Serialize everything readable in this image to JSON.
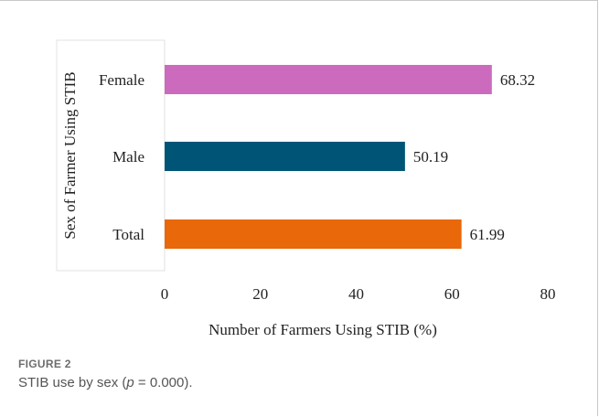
{
  "chart_data": {
    "type": "bar",
    "orientation": "horizontal",
    "categories": [
      "Female",
      "Male",
      "Total"
    ],
    "values": [
      68.32,
      50.19,
      61.99
    ],
    "data_labels": [
      "68.32",
      "50.19",
      "61.99"
    ],
    "colors": [
      "#cc6bbd",
      "#005577",
      "#e8680a"
    ],
    "xlabel": "Number of Farmers Using STIB (%)",
    "ylabel": "Sex of Farmer Using STIB",
    "xlim": [
      0,
      80
    ],
    "xticks": [
      "0",
      "20",
      "40",
      "60",
      "80"
    ],
    "grid": false,
    "legend": "none"
  },
  "caption": {
    "label": "FIGURE 2",
    "text_prefix": "STIB use by sex (",
    "text_italic": "p",
    "text_suffix": " = 0.000)."
  }
}
